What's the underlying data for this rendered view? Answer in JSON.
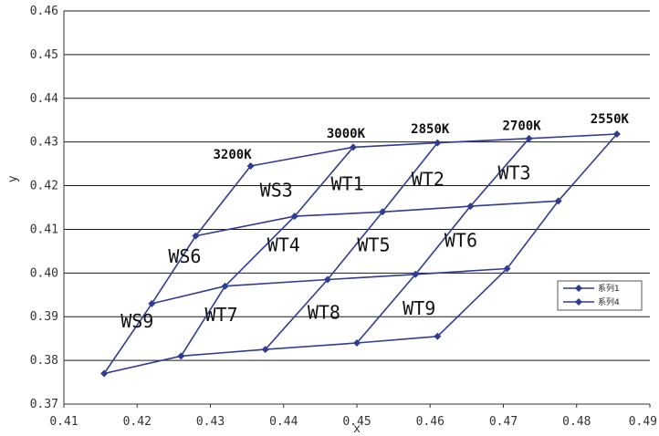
{
  "chart_data": {
    "type": "scatter",
    "xlabel": "x",
    "ylabel": "y",
    "xlim": [
      0.41,
      0.49
    ],
    "ylim": [
      0.37,
      0.46
    ],
    "x_ticks": [
      "0.41",
      "0.42",
      "0.43",
      "0.44",
      "0.45",
      "0.46",
      "0.47",
      "0.48",
      "0.49"
    ],
    "y_ticks": [
      "0.37",
      "0.38",
      "0.39",
      "0.40",
      "0.41",
      "0.42",
      "0.43",
      "0.44",
      "0.45",
      "0.46"
    ],
    "grid": "horizontal",
    "color": "#2f3c92",
    "series": [
      {
        "values": [
          [
            0.4155,
            0.377
          ],
          [
            0.422,
            0.393
          ],
          [
            0.428,
            0.4085
          ],
          [
            0.4355,
            0.4245
          ]
        ]
      },
      {
        "values": [
          [
            0.426,
            0.381
          ],
          [
            0.432,
            0.397
          ],
          [
            0.4415,
            0.413
          ],
          [
            0.4495,
            0.4288
          ]
        ]
      },
      {
        "values": [
          [
            0.4375,
            0.3825
          ],
          [
            0.446,
            0.3985
          ],
          [
            0.4535,
            0.414
          ],
          [
            0.461,
            0.4298
          ]
        ]
      },
      {
        "values": [
          [
            0.45,
            0.384
          ],
          [
            0.458,
            0.3997
          ],
          [
            0.4655,
            0.4153
          ],
          [
            0.4735,
            0.4308
          ]
        ]
      },
      {
        "values": [
          [
            0.461,
            0.3855
          ],
          [
            0.4705,
            0.401
          ],
          [
            0.4775,
            0.4165
          ],
          [
            0.4855,
            0.4318
          ]
        ]
      },
      {
        "values": [
          [
            0.4155,
            0.377
          ],
          [
            0.426,
            0.381
          ],
          [
            0.4375,
            0.3825
          ],
          [
            0.45,
            0.384
          ],
          [
            0.461,
            0.3855
          ]
        ]
      },
      {
        "values": [
          [
            0.422,
            0.393
          ],
          [
            0.432,
            0.397
          ],
          [
            0.446,
            0.3985
          ],
          [
            0.458,
            0.3997
          ],
          [
            0.4705,
            0.401
          ]
        ]
      },
      {
        "values": [
          [
            0.428,
            0.4085
          ],
          [
            0.4415,
            0.413
          ],
          [
            0.4535,
            0.414
          ],
          [
            0.4655,
            0.4153
          ],
          [
            0.4775,
            0.4165
          ]
        ]
      },
      {
        "values": [
          [
            0.4355,
            0.4245
          ],
          [
            0.4495,
            0.4288
          ],
          [
            0.461,
            0.4298
          ],
          [
            0.4735,
            0.4308
          ],
          [
            0.4855,
            0.4318
          ]
        ]
      }
    ],
    "cct_labels": [
      {
        "text": "3200K",
        "x": 0.433,
        "y": 0.4262
      },
      {
        "text": "3000K",
        "x": 0.4485,
        "y": 0.431
      },
      {
        "text": "2850K",
        "x": 0.46,
        "y": 0.432
      },
      {
        "text": "2700K",
        "x": 0.4725,
        "y": 0.4328
      },
      {
        "text": "2550K",
        "x": 0.4845,
        "y": 0.4343
      }
    ],
    "region_labels": [
      {
        "text": "WS3",
        "x": 0.439,
        "y": 0.4175
      },
      {
        "text": "WT1",
        "x": 0.4487,
        "y": 0.419
      },
      {
        "text": "WT2",
        "x": 0.4597,
        "y": 0.42
      },
      {
        "text": "WT3",
        "x": 0.4715,
        "y": 0.4215
      },
      {
        "text": "WS6",
        "x": 0.4265,
        "y": 0.4024
      },
      {
        "text": "WT4",
        "x": 0.44,
        "y": 0.405
      },
      {
        "text": "WT5",
        "x": 0.4523,
        "y": 0.405
      },
      {
        "text": "WT6",
        "x": 0.4642,
        "y": 0.406
      },
      {
        "text": "WS9",
        "x": 0.42,
        "y": 0.3875
      },
      {
        "text": "WT7",
        "x": 0.4315,
        "y": 0.389
      },
      {
        "text": "WT8",
        "x": 0.4455,
        "y": 0.3895
      },
      {
        "text": "WT9",
        "x": 0.4585,
        "y": 0.3905
      }
    ],
    "legend": {
      "position": "right",
      "entries": [
        "系列1",
        "系列4"
      ]
    }
  }
}
